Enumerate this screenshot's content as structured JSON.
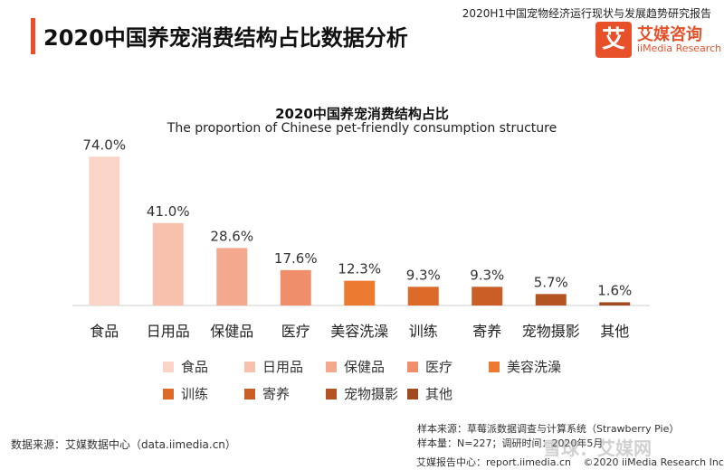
{
  "header": {
    "report_title": "2020H1中国宠物经济运行现状与发展趋势研究报告",
    "page_title": "2020中国养宠消费结构占比数据分析",
    "logo_mark": "艾",
    "logo_cn": "艾媒咨询",
    "logo_en": "iiMedia Research"
  },
  "chart_data": {
    "type": "bar",
    "title": "2020中国养宠消费结构占比",
    "subtitle": "The proportion of Chinese pet-friendly consumption structure",
    "categories": [
      "食品",
      "日用品",
      "保健品",
      "医疗",
      "美容洗澡",
      "训练",
      "寄养",
      "宠物摄影",
      "其他"
    ],
    "values": [
      74.0,
      41.0,
      28.6,
      17.6,
      12.3,
      9.3,
      9.3,
      5.7,
      1.6
    ],
    "value_labels": [
      "74.0%",
      "41.0%",
      "28.6%",
      "17.6%",
      "12.3%",
      "9.3%",
      "9.3%",
      "5.7%",
      "1.6%"
    ],
    "colors": [
      "#fad5c7",
      "#f8c1ad",
      "#f4a98e",
      "#ef8e6b",
      "#ec7a30",
      "#dc6a29",
      "#cb5e26",
      "#b55423",
      "#a14a1f"
    ],
    "ylim": [
      0,
      80
    ],
    "grid": false,
    "legend_position": "bottom"
  },
  "footer": {
    "data_source": "数据来源：艾媒数据中心（data.iimedia.cn）",
    "sample_source": "样本来源：草莓派数据调查与计算系统（Strawberry Pie）",
    "sample_info": "样本量：N=227；调研时间：2020年5月",
    "report_center": "艾媒报告中心：report.iimedia.cn",
    "copyright": "©2020  iiMedia Research  Inc",
    "watermark": "雪球：艾媒网"
  }
}
